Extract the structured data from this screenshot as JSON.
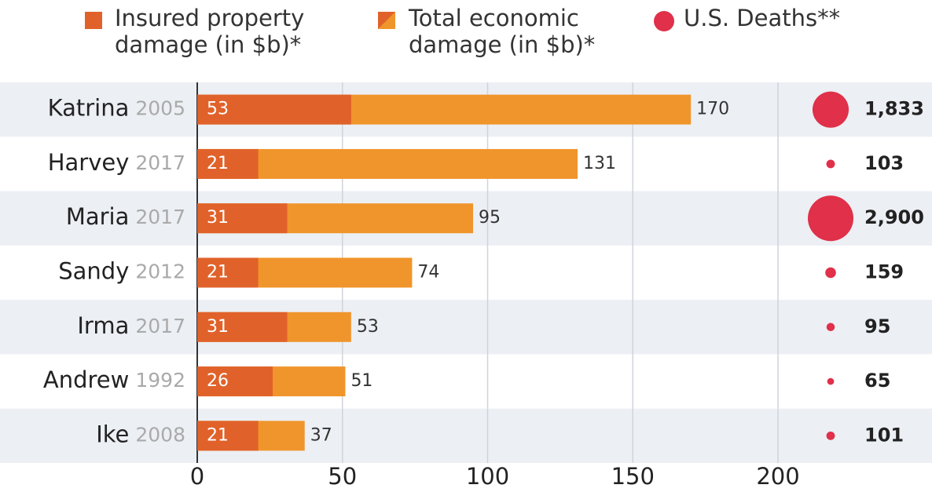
{
  "chart_data": {
    "type": "bar",
    "categories": [
      "Katrina",
      "Harvey",
      "Maria",
      "Sandy",
      "Irma",
      "Andrew",
      "Ike"
    ],
    "years": [
      "2005",
      "2017",
      "2017",
      "2012",
      "2017",
      "1992",
      "2008"
    ],
    "series": [
      {
        "name": "Insured property damage (in $b)*",
        "color": "#e0622a",
        "values": [
          53,
          21,
          31,
          21,
          31,
          26,
          21
        ]
      },
      {
        "name": "Total economic damage (in $b)*",
        "color": "#f0952b",
        "values": [
          170,
          131,
          95,
          74,
          53,
          51,
          37
        ]
      },
      {
        "name": "U.S. Deaths**",
        "color": "#e0304a",
        "type": "bubble",
        "values": [
          1833,
          103,
          2900,
          159,
          95,
          65,
          101
        ],
        "value_labels": [
          "1,833",
          "103",
          "2,900",
          "159",
          "95",
          "65",
          "101"
        ]
      }
    ],
    "xlim": [
      0,
      200
    ],
    "xticks": [
      0,
      50,
      100,
      150,
      200
    ],
    "grid": true
  }
}
